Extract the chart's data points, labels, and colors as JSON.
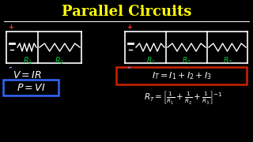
{
  "title": "Parallel Circuits",
  "title_color": "#FFFF00",
  "bg_color": "#000000",
  "formula_color": "#FFFFFF",
  "green_color": "#00CC44",
  "red_color": "#CC0000",
  "blue_color": "#0044CC",
  "red_plus": "#FF3333",
  "blue_minus": "#6699FF"
}
